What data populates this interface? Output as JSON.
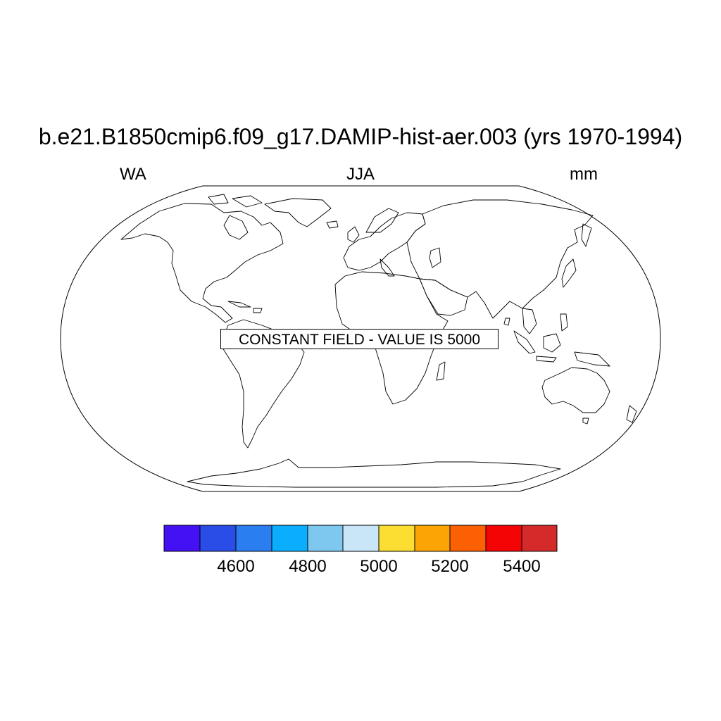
{
  "title": "b.e21.B1850cmip6.f09_g17.DAMIP-hist-aer.003 (yrs 1970-1994)",
  "subtitles": {
    "left": "WA",
    "center": "JJA",
    "right": "mm"
  },
  "map": {
    "projection": "Robinson",
    "field_note": "CONSTANT FIELD - VALUE IS 5000"
  },
  "colorbar": {
    "colors": [
      "#4410f4",
      "#2a4de8",
      "#2a7ef0",
      "#0aaefc",
      "#7ec8f0",
      "#c8e6f8",
      "#fcde32",
      "#fca404",
      "#fc6004",
      "#f40404",
      "#d42a2a"
    ],
    "labels": [
      "4600",
      "4800",
      "5000",
      "5200",
      "5400"
    ]
  }
}
